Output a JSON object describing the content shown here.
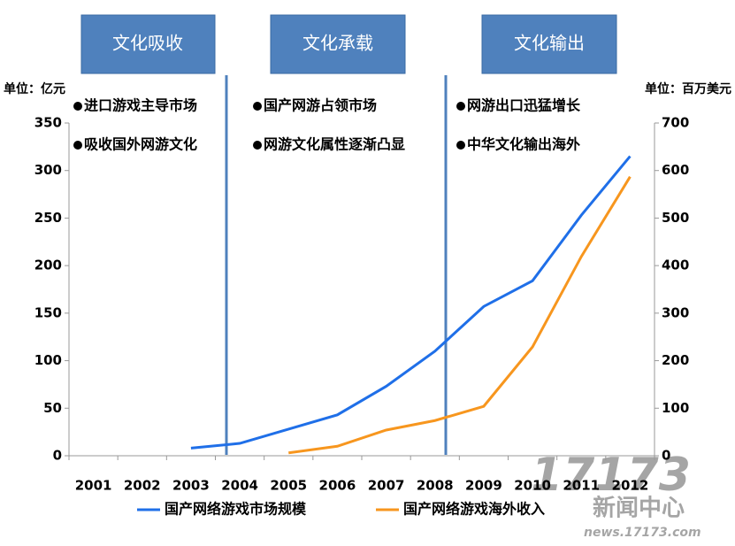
{
  "chart_data": {
    "type": "line",
    "categories": [
      "2001",
      "2002",
      "2003",
      "2004",
      "2005",
      "2006",
      "2007",
      "2008",
      "2009",
      "2010",
      "2011",
      "2012"
    ],
    "series": [
      {
        "name": "国产网络游戏市场规模",
        "color": "#1f6fe8",
        "values": [
          null,
          null,
          8,
          13,
          28,
          43,
          73,
          110,
          157,
          184,
          253,
          315
        ]
      },
      {
        "name": "国产网络游戏海外收入",
        "color": "#f7961e",
        "axis": "y2",
        "values": [
          null,
          null,
          null,
          null,
          6,
          20,
          54,
          74,
          104,
          229,
          419,
          587
        ]
      }
    ],
    "ylim": [
      0,
      350
    ],
    "yticks": [
      0,
      50,
      100,
      150,
      200,
      250,
      300,
      350
    ],
    "y2lim": [
      0,
      700
    ],
    "y2ticks": [
      0,
      100,
      200,
      300,
      400,
      500,
      600,
      700
    ],
    "y_unit": "单位：亿元",
    "y2_unit": "单位：百万美元",
    "phases": [
      {
        "label": "文化吸收",
        "notes": [
          "进口游戏主导市场",
          "吸收国外网游文化"
        ]
      },
      {
        "label": "文化承载",
        "notes": [
          "国产网游占领市场",
          "网游文化属性逐渐凸显"
        ]
      },
      {
        "label": "文化输出",
        "notes": [
          "网游出口迅猛增长",
          "中华文化输出海外"
        ]
      }
    ],
    "watermark": [
      "17173",
      "新闻中心",
      "news.17173.com"
    ]
  }
}
